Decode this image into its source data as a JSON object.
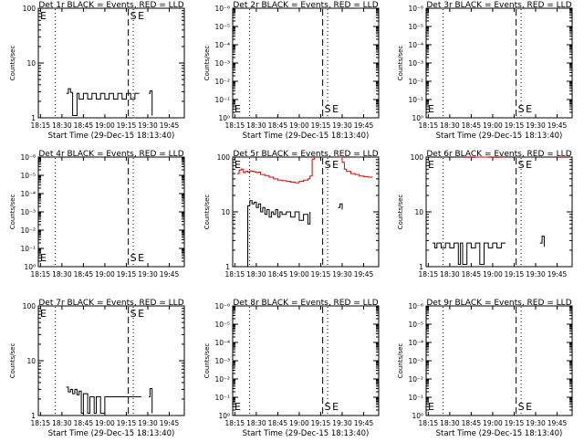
{
  "colors": {
    "events": "#000000",
    "lld": "#e00000",
    "axis": "#000000",
    "background": "#ffffff"
  },
  "chart_data": [
    {
      "type": "line",
      "title": "Det 1r BLACK = Events, RED = LLD",
      "xlabel": "Start Time (29-Dec-15 18:13:40)",
      "ylabel": "Counts/sec",
      "xticks": [
        "18:15",
        "18:30",
        "18:45",
        "19:00",
        "19:15",
        "19:30",
        "19:45"
      ],
      "yscale": "log",
      "ylim": [
        1,
        100
      ],
      "yticks": [
        "1",
        "10",
        "100"
      ],
      "markers": [
        {
          "label": "E",
          "x": 1.9,
          "style": "dotted"
        },
        {
          "label": "S",
          "x": 24.8,
          "style": "dashed"
        },
        {
          "label": "E",
          "x": 26.2,
          "style": "dotted"
        }
      ],
      "series": [
        {
          "key": "events",
          "points": [
            [
              12,
              2.8
            ],
            [
              13,
              3.4
            ],
            [
              14,
              2.9
            ],
            [
              15,
              1.1
            ],
            [
              17,
              2.8
            ],
            [
              18,
              2.2
            ],
            [
              20,
              2.8
            ],
            [
              22,
              2.2
            ],
            [
              24,
              2.8
            ],
            [
              26,
              2.2
            ],
            [
              28,
              2.8
            ],
            [
              30,
              2.2
            ],
            [
              32,
              2.8
            ],
            [
              34,
              2.2
            ],
            [
              36,
              2.8
            ],
            [
              38,
              2.2
            ],
            [
              40,
              2.8
            ],
            [
              42,
              2.2
            ],
            [
              44,
              2.8
            ],
            [
              46,
              2.8
            ]
          ]
        },
        {
          "key": "events",
          "points": [
            [
              50.5,
              2.8
            ],
            [
              51,
              3.1
            ],
            [
              52,
              1.1
            ]
          ]
        }
      ]
    },
    {
      "type": "line",
      "title": "Det 2r BLACK = Events, RED = LLD",
      "xlabel": "Start Time (29-Dec-15 18:13:40)",
      "ylabel": "Counts/sec",
      "xticks": [
        "18:15",
        "18:30",
        "18:45",
        "19:00",
        "19:15",
        "19:30",
        "19:45"
      ],
      "yscale": "log",
      "ylim": [
        1,
        1000000
      ],
      "yticks": [
        "10⁰",
        "10⁻¹",
        "10⁻²",
        "10⁻³",
        "10⁻⁴",
        "10⁻⁵",
        "10⁻⁶"
      ],
      "markers": [
        {
          "label": "E",
          "x": 1.9,
          "style": "dotted"
        },
        {
          "label": "S",
          "x": 24.8,
          "style": "dashed"
        },
        {
          "label": "E",
          "x": 26.2,
          "style": "dotted"
        }
      ],
      "series": []
    },
    {
      "type": "line",
      "title": "Det 3r BLACK = Events, RED = LLD",
      "xlabel": "Start Time (29-Dec-15 18:13:40)",
      "ylabel": "Counts/sec",
      "xticks": [
        "18:15",
        "18:30",
        "18:45",
        "19:00",
        "19:15",
        "19:30",
        "19:45"
      ],
      "yscale": "log",
      "ylim": [
        1,
        1000000
      ],
      "yticks": [
        "10⁰",
        "10⁻¹",
        "10⁻²",
        "10⁻³",
        "10⁻⁴",
        "10⁻⁵",
        "10⁻⁶"
      ],
      "markers": [
        {
          "label": "E",
          "x": 1.9,
          "style": "dotted"
        },
        {
          "label": "S",
          "x": 24.8,
          "style": "dashed"
        },
        {
          "label": "E",
          "x": 26.2,
          "style": "dotted"
        }
      ],
      "series": []
    },
    {
      "type": "line",
      "title": "Det 4r BLACK = Events, RED = LLD",
      "xlabel": "",
      "ylabel": "Counts/sec",
      "xticks": [
        "18:15",
        "18:30",
        "18:45",
        "19:00",
        "19:15",
        "19:30",
        "19:45"
      ],
      "yscale": "log",
      "ylim": [
        1,
        1000000
      ],
      "yticks": [
        "10⁰",
        "10⁻¹",
        "10⁻²",
        "10⁻³",
        "10⁻⁴",
        "10⁻⁵",
        "10⁻⁶"
      ],
      "markers": [
        {
          "label": "E",
          "x": 1.9,
          "style": "dotted"
        },
        {
          "label": "S",
          "x": 24.8,
          "style": "dashed"
        },
        {
          "label": "E",
          "x": 26.2,
          "style": "dotted"
        }
      ],
      "series": []
    },
    {
      "type": "line",
      "title": "Det 5r BLACK = Events, RED = LLD",
      "xlabel": "",
      "ylabel": "Counts/sec",
      "xticks": [
        "18:15",
        "18:30",
        "18:45",
        "19:00",
        "19:15",
        "19:30",
        "19:45"
      ],
      "yscale": "log",
      "ylim": [
        1,
        100
      ],
      "yticks": [
        "1",
        "10",
        "100"
      ],
      "markers": [
        {
          "label": "E",
          "x": 1.9,
          "style": "dotted"
        },
        {
          "label": "S",
          "x": 24.8,
          "style": "dashed"
        },
        {
          "label": "E",
          "x": 26.2,
          "style": "dotted"
        }
      ],
      "series": [
        {
          "key": "lld",
          "points": [
            [
              1,
              50
            ],
            [
              2,
              58
            ],
            [
              3,
              60
            ],
            [
              4,
              52
            ],
            [
              5,
              55
            ],
            [
              6,
              53
            ],
            [
              7,
              56
            ],
            [
              8,
              55
            ],
            [
              9,
              54
            ],
            [
              10,
              52
            ],
            [
              11,
              53
            ],
            [
              12,
              48
            ],
            [
              14,
              46
            ],
            [
              16,
              43
            ],
            [
              18,
              40
            ],
            [
              20,
              38
            ],
            [
              22,
              37
            ],
            [
              24,
              36
            ],
            [
              26,
              35
            ],
            [
              28,
              34
            ],
            [
              30,
              36
            ],
            [
              32,
              38
            ],
            [
              34,
              40
            ],
            [
              35,
              45
            ],
            [
              36,
              92
            ],
            [
              37,
              100
            ]
          ]
        },
        {
          "key": "lld",
          "points": [
            [
              49,
              100
            ],
            [
              50,
              80
            ],
            [
              51,
              60
            ],
            [
              52,
              55
            ],
            [
              54,
              50
            ],
            [
              56,
              48
            ],
            [
              58,
              45
            ],
            [
              60,
              44
            ],
            [
              62,
              43
            ],
            [
              64,
              44
            ]
          ]
        },
        {
          "key": "events",
          "points": [
            [
              5,
              1
            ],
            [
              6,
              13
            ],
            [
              7,
              16
            ],
            [
              8,
              14
            ],
            [
              9,
              15
            ],
            [
              10,
              12
            ],
            [
              11,
              14
            ],
            [
              12,
              10
            ],
            [
              13,
              12
            ],
            [
              14,
              9
            ],
            [
              15,
              11
            ],
            [
              16,
              8
            ],
            [
              17,
              10
            ],
            [
              18,
              9
            ],
            [
              19,
              11
            ],
            [
              20,
              8
            ],
            [
              21,
              10
            ],
            [
              22,
              9
            ],
            [
              24,
              10
            ],
            [
              26,
              8
            ],
            [
              28,
              10
            ],
            [
              30,
              7
            ],
            [
              32,
              9
            ],
            [
              34,
              6
            ],
            [
              35,
              10
            ]
          ]
        },
        {
          "key": "events",
          "points": [
            [
              48,
              12
            ],
            [
              49,
              14
            ],
            [
              50,
              11
            ]
          ]
        }
      ]
    },
    {
      "type": "line",
      "title": "Det 6r BLACK = Events, RED = LLD",
      "xlabel": "",
      "ylabel": "Counts/sec",
      "xticks": [
        "18:15",
        "18:30",
        "18:45",
        "19:00",
        "19:15",
        "19:30",
        "19:45"
      ],
      "yscale": "log",
      "ylim": [
        1,
        100
      ],
      "yticks": [
        "1",
        "10",
        "100"
      ],
      "markers": [
        {
          "label": "E",
          "x": 1.9,
          "style": "dotted"
        },
        {
          "label": "S",
          "x": 24.8,
          "style": "dashed"
        },
        {
          "label": "E",
          "x": 26.2,
          "style": "dotted"
        }
      ],
      "series": [
        {
          "key": "lld",
          "points": [
            [
              16,
              99
            ],
            [
              22,
              100
            ],
            [
              28,
              99
            ],
            [
              34,
              100
            ]
          ]
        },
        {
          "key": "lld",
          "points": [
            [
              60,
              99
            ],
            [
              64,
              100
            ]
          ]
        },
        {
          "key": "events",
          "points": [
            [
              2,
              2.7
            ],
            [
              3,
              2.2
            ],
            [
              4,
              2.7
            ],
            [
              6,
              2.2
            ],
            [
              8,
              2.7
            ],
            [
              10,
              2.2
            ],
            [
              12,
              2.7
            ],
            [
              14,
              1.1
            ],
            [
              15,
              2.7
            ],
            [
              16,
              1.1
            ],
            [
              18,
              2.7
            ],
            [
              20,
              2.2
            ],
            [
              22,
              2.7
            ],
            [
              24,
              1.1
            ],
            [
              26,
              2.7
            ],
            [
              28,
              2.2
            ],
            [
              30,
              2.7
            ],
            [
              32,
              2.2
            ],
            [
              34,
              2.7
            ],
            [
              36,
              2.7
            ]
          ]
        },
        {
          "key": "events",
          "points": [
            [
              52,
              2.7
            ],
            [
              53,
              3.6
            ],
            [
              54,
              2.3
            ]
          ]
        }
      ]
    },
    {
      "type": "line",
      "title": "Det 7r BLACK = Events, RED = LLD",
      "xlabel": "Start Time (29-Dec-15 18:13:40)",
      "ylabel": "Counts/sec",
      "xticks": [
        "18:15",
        "18:30",
        "18:45",
        "19:00",
        "19:15",
        "19:30",
        "19:45"
      ],
      "yscale": "log",
      "ylim": [
        1,
        100
      ],
      "yticks": [
        "1",
        "10",
        "100"
      ],
      "markers": [
        {
          "label": "E",
          "x": 1.9,
          "style": "dotted"
        },
        {
          "label": "S",
          "x": 24.8,
          "style": "dashed"
        },
        {
          "label": "E",
          "x": 26.2,
          "style": "dotted"
        }
      ],
      "series": [
        {
          "key": "events",
          "points": [
            [
              12,
              3.3
            ],
            [
              13,
              2.7
            ],
            [
              14,
              3.0
            ],
            [
              15,
              2.5
            ],
            [
              16,
              3.0
            ],
            [
              17,
              2.4
            ],
            [
              18,
              2.8
            ],
            [
              19,
              1.1
            ],
            [
              20,
              2.5
            ],
            [
              22,
              1.1
            ],
            [
              23,
              2.2
            ],
            [
              25,
              1.1
            ],
            [
              26,
              2.2
            ],
            [
              28,
              1.1
            ],
            [
              30,
              2.2
            ],
            [
              32,
              2.2
            ],
            [
              34,
              2.2
            ],
            [
              36,
              2.2
            ],
            [
              38,
              2.2
            ],
            [
              40,
              2.2
            ],
            [
              42,
              2.2
            ],
            [
              44,
              2.2
            ],
            [
              46,
              2.2
            ],
            [
              47,
              2.2
            ]
          ]
        },
        {
          "key": "events",
          "points": [
            [
              50.5,
              2.2
            ],
            [
              51,
              3.1
            ],
            [
              52,
              1.1
            ]
          ]
        }
      ]
    },
    {
      "type": "line",
      "title": "Det 8r BLACK = Events, RED = LLD",
      "xlabel": "Start Time (29-Dec-15 18:13:40)",
      "ylabel": "Counts/sec",
      "xticks": [
        "18:15",
        "18:30",
        "18:45",
        "19:00",
        "19:15",
        "19:30",
        "19:45"
      ],
      "yscale": "log",
      "ylim": [
        1,
        1000000
      ],
      "yticks": [
        "10⁰",
        "10⁻¹",
        "10⁻²",
        "10⁻³",
        "10⁻⁴",
        "10⁻⁵",
        "10⁻⁶"
      ],
      "markers": [
        {
          "label": "E",
          "x": 1.9,
          "style": "dotted"
        },
        {
          "label": "S",
          "x": 24.8,
          "style": "dashed"
        },
        {
          "label": "E",
          "x": 26.2,
          "style": "dotted"
        }
      ],
      "series": []
    },
    {
      "type": "line",
      "title": "Det 9r BLACK = Events, RED = LLD",
      "xlabel": "Start Time (29-Dec-15 18:13:40)",
      "ylabel": "Counts/sec",
      "xticks": [
        "18:15",
        "18:30",
        "18:45",
        "19:00",
        "19:15",
        "19:30",
        "19:45"
      ],
      "yscale": "log",
      "ylim": [
        1,
        1000000
      ],
      "yticks": [
        "10⁰",
        "10⁻¹",
        "10⁻²",
        "10⁻³",
        "10⁻⁴",
        "10⁻⁵",
        "10⁻⁶"
      ],
      "markers": [
        {
          "label": "E",
          "x": 1.9,
          "style": "dotted"
        },
        {
          "label": "S",
          "x": 24.8,
          "style": "dashed"
        },
        {
          "label": "E",
          "x": 26.2,
          "style": "dotted"
        }
      ],
      "series": []
    }
  ]
}
